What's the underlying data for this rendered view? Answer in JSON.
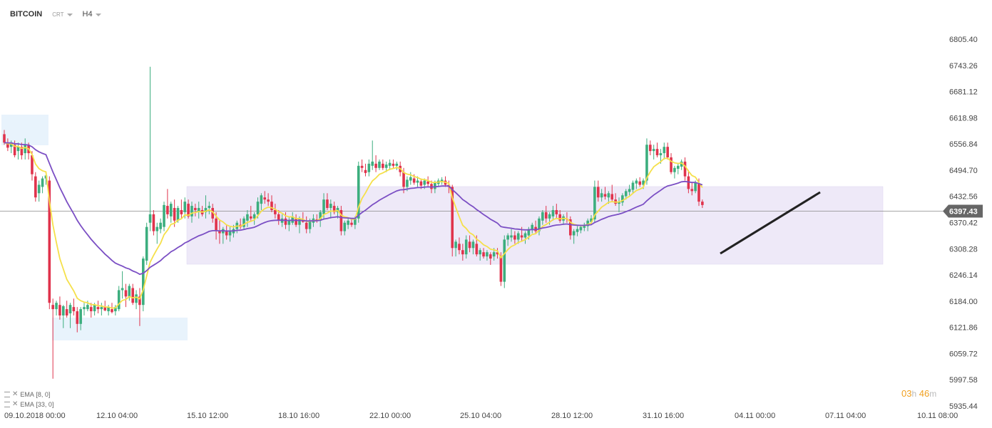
{
  "header": {
    "symbol": "BITCOIN",
    "type": "CRT",
    "timeframe": "H4"
  },
  "indicators": [
    {
      "label": "EMA",
      "params": "[8, 0]",
      "color": "#f5e04a"
    },
    {
      "label": "EMA",
      "params": "[33, 0]",
      "color": "#7b4fc4"
    }
  ],
  "timer": {
    "hours": "03",
    "h": "h",
    "minutes": "46",
    "m": "m"
  },
  "colors": {
    "up": "#3cae7e",
    "down": "#e0334c",
    "zone": "#eee9f8",
    "zone_blue": "#e8f3fc",
    "trend": "#222222"
  },
  "chart_data": {
    "type": "candlestick",
    "title": "",
    "price_ticks": [
      "6805.40",
      "6743.26",
      "6681.12",
      "6618.98",
      "6556.84",
      "6494.70",
      "6432.56",
      "6370.42",
      "6308.28",
      "6246.14",
      "6184.00",
      "6121.86",
      "6059.72",
      "5997.58",
      "5935.44"
    ],
    "time_ticks": [
      "09.10.2018  00:00",
      "12.10  04:00",
      "15.10  12:00",
      "18.10  16:00",
      "22.10  00:00",
      "25.10  04:00",
      "28.10  12:00",
      "31.10  16:00",
      "04.11  00:00",
      "07.11  04:00",
      "10.11  08:00"
    ],
    "current_price": "6397.43",
    "ylim": [
      5935.44,
      6805.4
    ],
    "candles": [
      [
        6580,
        6590,
        6555,
        6560
      ],
      [
        6560,
        6570,
        6540,
        6548
      ],
      [
        6550,
        6565,
        6535,
        6558
      ],
      [
        6555,
        6565,
        6525,
        6530
      ],
      [
        6540,
        6560,
        6520,
        6550
      ],
      [
        6550,
        6560,
        6520,
        6530
      ],
      [
        6535,
        6570,
        6520,
        6555
      ],
      [
        6555,
        6560,
        6520,
        6535
      ],
      [
        6530,
        6540,
        6470,
        6485
      ],
      [
        6480,
        6490,
        6420,
        6430
      ],
      [
        6440,
        6470,
        6420,
        6460
      ],
      [
        6455,
        6480,
        6440,
        6475
      ],
      [
        6475,
        6485,
        6460,
        6482
      ],
      [
        6470,
        6480,
        6165,
        6180
      ],
      [
        6175,
        6190,
        6000,
        6165
      ],
      [
        6165,
        6185,
        6150,
        6180
      ],
      [
        6175,
        6195,
        6140,
        6150
      ],
      [
        6150,
        6175,
        6120,
        6172
      ],
      [
        6165,
        6185,
        6145,
        6150
      ],
      [
        6155,
        6180,
        6120,
        6175
      ],
      [
        6170,
        6190,
        6150,
        6160
      ],
      [
        6160,
        6170,
        6110,
        6130
      ],
      [
        6130,
        6170,
        6115,
        6165
      ],
      [
        6165,
        6180,
        6150,
        6170
      ],
      [
        6165,
        6185,
        6160,
        6175
      ],
      [
        6170,
        6180,
        6145,
        6160
      ],
      [
        6160,
        6180,
        6150,
        6175
      ],
      [
        6170,
        6185,
        6155,
        6165
      ],
      [
        6165,
        6180,
        6150,
        6170
      ],
      [
        6170,
        6185,
        6160,
        6162
      ],
      [
        6160,
        6175,
        6150,
        6170
      ],
      [
        6165,
        6180,
        6155,
        6158
      ],
      [
        6160,
        6175,
        6150,
        6170
      ],
      [
        6165,
        6220,
        6160,
        6210
      ],
      [
        6210,
        6255,
        6190,
        6215
      ],
      [
        6210,
        6225,
        6170,
        6195
      ],
      [
        6195,
        6225,
        6185,
        6220
      ],
      [
        6215,
        6225,
        6175,
        6180
      ],
      [
        6180,
        6210,
        6165,
        6200
      ],
      [
        6195,
        6215,
        6125,
        6175
      ],
      [
        6175,
        6290,
        6160,
        6285
      ],
      [
        6280,
        6370,
        6270,
        6360
      ],
      [
        6370,
        6740,
        6350,
        6390
      ],
      [
        6390,
        6400,
        6340,
        6350
      ],
      [
        6350,
        6370,
        6320,
        6360
      ],
      [
        6355,
        6380,
        6345,
        6370
      ],
      [
        6360,
        6420,
        6350,
        6412
      ],
      [
        6410,
        6450,
        6380,
        6390
      ],
      [
        6385,
        6420,
        6370,
        6415
      ],
      [
        6405,
        6425,
        6360,
        6375
      ],
      [
        6375,
        6410,
        6370,
        6405
      ],
      [
        6400,
        6425,
        6380,
        6390
      ],
      [
        6395,
        6430,
        6380,
        6420
      ],
      [
        6415,
        6425,
        6380,
        6385
      ],
      [
        6385,
        6420,
        6370,
        6410
      ],
      [
        6405,
        6415,
        6385,
        6400
      ],
      [
        6395,
        6420,
        6380,
        6405
      ],
      [
        6400,
        6410,
        6385,
        6390
      ],
      [
        6395,
        6435,
        6380,
        6405
      ],
      [
        6405,
        6420,
        6390,
        6410
      ],
      [
        6405,
        6415,
        6370,
        6380
      ],
      [
        6380,
        6395,
        6330,
        6350
      ],
      [
        6350,
        6375,
        6320,
        6345
      ],
      [
        6345,
        6360,
        6320,
        6355
      ],
      [
        6350,
        6365,
        6330,
        6340
      ],
      [
        6340,
        6360,
        6325,
        6350
      ],
      [
        6345,
        6365,
        6335,
        6355
      ],
      [
        6355,
        6375,
        6345,
        6370
      ],
      [
        6365,
        6380,
        6355,
        6360
      ],
      [
        6360,
        6385,
        6355,
        6380
      ],
      [
        6375,
        6400,
        6360,
        6390
      ],
      [
        6385,
        6410,
        6375,
        6380
      ],
      [
        6380,
        6395,
        6365,
        6390
      ],
      [
        6390,
        6430,
        6380,
        6420
      ],
      [
        6415,
        6440,
        6400,
        6435
      ],
      [
        6430,
        6445,
        6415,
        6425
      ],
      [
        6425,
        6440,
        6410,
        6420
      ],
      [
        6420,
        6435,
        6395,
        6400
      ],
      [
        6400,
        6415,
        6380,
        6390
      ],
      [
        6390,
        6400,
        6365,
        6375
      ],
      [
        6370,
        6390,
        6360,
        6380
      ],
      [
        6380,
        6395,
        6355,
        6365
      ],
      [
        6365,
        6385,
        6350,
        6375
      ],
      [
        6370,
        6395,
        6365,
        6385
      ],
      [
        6380,
        6390,
        6360,
        6365
      ],
      [
        6365,
        6385,
        6345,
        6380
      ],
      [
        6378,
        6395,
        6370,
        6372
      ],
      [
        6370,
        6385,
        6345,
        6355
      ],
      [
        6355,
        6380,
        6345,
        6375
      ],
      [
        6370,
        6390,
        6360,
        6380
      ],
      [
        6378,
        6390,
        6370,
        6375
      ],
      [
        6375,
        6400,
        6360,
        6395
      ],
      [
        6390,
        6440,
        6380,
        6425
      ],
      [
        6425,
        6440,
        6400,
        6405
      ],
      [
        6405,
        6425,
        6380,
        6415
      ],
      [
        6410,
        6420,
        6390,
        6395
      ],
      [
        6395,
        6410,
        6380,
        6405
      ],
      [
        6400,
        6410,
        6340,
        6350
      ],
      [
        6350,
        6375,
        6340,
        6370
      ],
      [
        6365,
        6380,
        6355,
        6375
      ],
      [
        6370,
        6380,
        6360,
        6365
      ],
      [
        6365,
        6385,
        6355,
        6380
      ],
      [
        6380,
        6515,
        6370,
        6505
      ],
      [
        6505,
        6520,
        6490,
        6500
      ],
      [
        6495,
        6510,
        6480,
        6488
      ],
      [
        6490,
        6520,
        6480,
        6510
      ],
      [
        6505,
        6565,
        6495,
        6515
      ],
      [
        6510,
        6530,
        6490,
        6500
      ],
      [
        6500,
        6520,
        6495,
        6515
      ],
      [
        6510,
        6520,
        6495,
        6500
      ],
      [
        6500,
        6515,
        6490,
        6508
      ],
      [
        6505,
        6520,
        6495,
        6512
      ],
      [
        6510,
        6520,
        6500,
        6505
      ],
      [
        6505,
        6515,
        6495,
        6510
      ],
      [
        6505,
        6515,
        6480,
        6490
      ],
      [
        6490,
        6500,
        6440,
        6455
      ],
      [
        6455,
        6480,
        6445,
        6472
      ],
      [
        6470,
        6490,
        6460,
        6478
      ],
      [
        6475,
        6485,
        6460,
        6465
      ],
      [
        6465,
        6480,
        6455,
        6470
      ],
      [
        6468,
        6475,
        6450,
        6458
      ],
      [
        6460,
        6475,
        6450,
        6470
      ],
      [
        6468,
        6480,
        6455,
        6462
      ],
      [
        6462,
        6470,
        6440,
        6450
      ],
      [
        6450,
        6470,
        6440,
        6465
      ],
      [
        6462,
        6475,
        6455,
        6470
      ],
      [
        6468,
        6478,
        6460,
        6472
      ],
      [
        6470,
        6480,
        6455,
        6460
      ],
      [
        6460,
        6470,
        6440,
        6455
      ],
      [
        6455,
        6460,
        6290,
        6310
      ],
      [
        6310,
        6330,
        6290,
        6325
      ],
      [
        6320,
        6335,
        6295,
        6305
      ],
      [
        6305,
        6320,
        6280,
        6295
      ],
      [
        6295,
        6340,
        6285,
        6330
      ],
      [
        6325,
        6340,
        6300,
        6310
      ],
      [
        6310,
        6330,
        6295,
        6325
      ],
      [
        6320,
        6340,
        6290,
        6295
      ],
      [
        6295,
        6310,
        6280,
        6305
      ],
      [
        6300,
        6310,
        6285,
        6290
      ],
      [
        6290,
        6305,
        6280,
        6300
      ],
      [
        6295,
        6300,
        6270,
        6285
      ],
      [
        6290,
        6310,
        6280,
        6300
      ],
      [
        6300,
        6310,
        6285,
        6295
      ],
      [
        6290,
        6300,
        6220,
        6230
      ],
      [
        6230,
        6340,
        6215,
        6330
      ],
      [
        6330,
        6345,
        6315,
        6340
      ],
      [
        6335,
        6355,
        6325,
        6340
      ],
      [
        6340,
        6350,
        6320,
        6330
      ],
      [
        6330,
        6350,
        6320,
        6345
      ],
      [
        6340,
        6360,
        6325,
        6335
      ],
      [
        6335,
        6350,
        6320,
        6345
      ],
      [
        6340,
        6360,
        6330,
        6355
      ],
      [
        6355,
        6370,
        6345,
        6365
      ],
      [
        6360,
        6375,
        6345,
        6350
      ],
      [
        6350,
        6385,
        6340,
        6380
      ],
      [
        6375,
        6400,
        6365,
        6395
      ],
      [
        6395,
        6410,
        6370,
        6380
      ],
      [
        6380,
        6395,
        6365,
        6390
      ],
      [
        6385,
        6410,
        6375,
        6400
      ],
      [
        6400,
        6415,
        6380,
        6390
      ],
      [
        6390,
        6400,
        6370,
        6375
      ],
      [
        6375,
        6390,
        6365,
        6385
      ],
      [
        6380,
        6395,
        6370,
        6378
      ],
      [
        6378,
        6385,
        6330,
        6340
      ],
      [
        6340,
        6355,
        6320,
        6350
      ],
      [
        6348,
        6362,
        6338,
        6355
      ],
      [
        6352,
        6365,
        6345,
        6360
      ],
      [
        6358,
        6370,
        6350,
        6365
      ],
      [
        6362,
        6380,
        6350,
        6375
      ],
      [
        6372,
        6388,
        6365,
        6380
      ],
      [
        6378,
        6470,
        6370,
        6455
      ],
      [
        6455,
        6470,
        6420,
        6430
      ],
      [
        6430,
        6450,
        6420,
        6440
      ],
      [
        6438,
        6455,
        6425,
        6432
      ],
      [
        6430,
        6445,
        6415,
        6440
      ],
      [
        6438,
        6460,
        6420,
        6425
      ],
      [
        6425,
        6440,
        6410,
        6415
      ],
      [
        6415,
        6430,
        6395,
        6420
      ],
      [
        6418,
        6440,
        6410,
        6435
      ],
      [
        6433,
        6450,
        6425,
        6445
      ],
      [
        6443,
        6460,
        6435,
        6450
      ],
      [
        6448,
        6470,
        6440,
        6465
      ],
      [
        6463,
        6475,
        6450,
        6470
      ],
      [
        6468,
        6478,
        6455,
        6460
      ],
      [
        6460,
        6475,
        6450,
        6470
      ],
      [
        6470,
        6570,
        6460,
        6555
      ],
      [
        6555,
        6565,
        6530,
        6540
      ],
      [
        6540,
        6555,
        6520,
        6545
      ],
      [
        6545,
        6560,
        6525,
        6530
      ],
      [
        6530,
        6545,
        6510,
        6535
      ],
      [
        6535,
        6560,
        6520,
        6550
      ],
      [
        6550,
        6560,
        6520,
        6525
      ],
      [
        6525,
        6535,
        6485,
        6490
      ],
      [
        6490,
        6505,
        6475,
        6500
      ],
      [
        6498,
        6510,
        6485,
        6505
      ],
      [
        6503,
        6520,
        6495,
        6515
      ],
      [
        6515,
        6525,
        6470,
        6480
      ],
      [
        6480,
        6495,
        6440,
        6450
      ],
      [
        6450,
        6465,
        6435,
        6445
      ],
      [
        6445,
        6470,
        6440,
        6465
      ],
      [
        6462,
        6475,
        6410,
        6420
      ],
      [
        6420,
        6425,
        6405,
        6412
      ]
    ]
  }
}
